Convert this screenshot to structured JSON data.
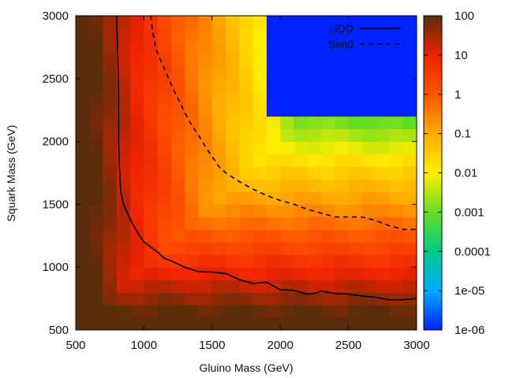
{
  "chart_data": {
    "type": "heatmap",
    "title": "",
    "xlabel": "Gluino Mass (GeV)",
    "ylabel": "Squark Mass (GeV)",
    "xlim": [
      500,
      3000
    ],
    "ylim": [
      500,
      3000
    ],
    "x_ticks": [
      500,
      1000,
      1500,
      2000,
      2500,
      3000
    ],
    "y_ticks": [
      500,
      1000,
      1500,
      2000,
      2500,
      3000
    ],
    "colorbar": {
      "scale": "log",
      "range": [
        1e-06,
        100
      ],
      "ticks": [
        100,
        10,
        1,
        0.1,
        0.01,
        0.001,
        0.0001,
        1e-05,
        1e-06
      ],
      "tick_labels": [
        "100",
        "10",
        "1",
        "0.1",
        "0.01",
        "0.001",
        "0.0001",
        "1e-05",
        "1e-06"
      ],
      "colors": [
        "#0022ff",
        "#00aaff",
        "#00cc88",
        "#66dd22",
        "#ffee00",
        "#ffaa00",
        "#ff5500",
        "#ee2200",
        "#5a2d0a"
      ]
    },
    "grid": {
      "x_step": 100,
      "y_step": 100
    },
    "legend": {
      "placement": "top-right",
      "entries": [
        {
          "label": "UDD",
          "style": "solid"
        },
        {
          "label": "Sim0",
          "style": "dashed"
        }
      ]
    },
    "series": [
      {
        "name": "UDD",
        "style": "solid",
        "x": [
          800,
          805,
          810,
          815,
          815,
          815,
          820,
          830,
          850,
          900,
          950,
          1000,
          1050,
          1100,
          1150,
          1200,
          1300,
          1400,
          1500,
          1600,
          1700,
          1800,
          1900,
          2000,
          2100,
          2200,
          2250,
          2300,
          2400,
          2500,
          2600,
          2700,
          2800,
          2900,
          3000
        ],
        "y": [
          3000,
          2800,
          2600,
          2400,
          2200,
          2000,
          1800,
          1600,
          1500,
          1380,
          1280,
          1200,
          1160,
          1120,
          1070,
          1050,
          1000,
          965,
          960,
          950,
          900,
          870,
          880,
          820,
          815,
          785,
          790,
          810,
          790,
          785,
          770,
          760,
          740,
          740,
          750
        ]
      },
      {
        "name": "Sim0",
        "style": "dashed",
        "x": [
          1050,
          1060,
          1080,
          1100,
          1150,
          1200,
          1250,
          1300,
          1350,
          1400,
          1450,
          1500,
          1550,
          1600,
          1700,
          1800,
          1900,
          2000,
          2100,
          2200,
          2300,
          2400,
          2500,
          2600,
          2700,
          2800,
          2900,
          3000
        ],
        "y": [
          3000,
          2900,
          2780,
          2700,
          2580,
          2450,
          2340,
          2230,
          2130,
          2050,
          1960,
          1880,
          1800,
          1750,
          1680,
          1620,
          1570,
          1530,
          1500,
          1460,
          1430,
          1400,
          1400,
          1400,
          1370,
          1330,
          1300,
          1300
        ]
      }
    ],
    "values_model": {
      "description": "cell value = 10^(log10 value); estimated from colors",
      "no_data_region": {
        "x_min": 1950,
        "y_min": 2250,
        "value": 1e-06
      }
    }
  }
}
